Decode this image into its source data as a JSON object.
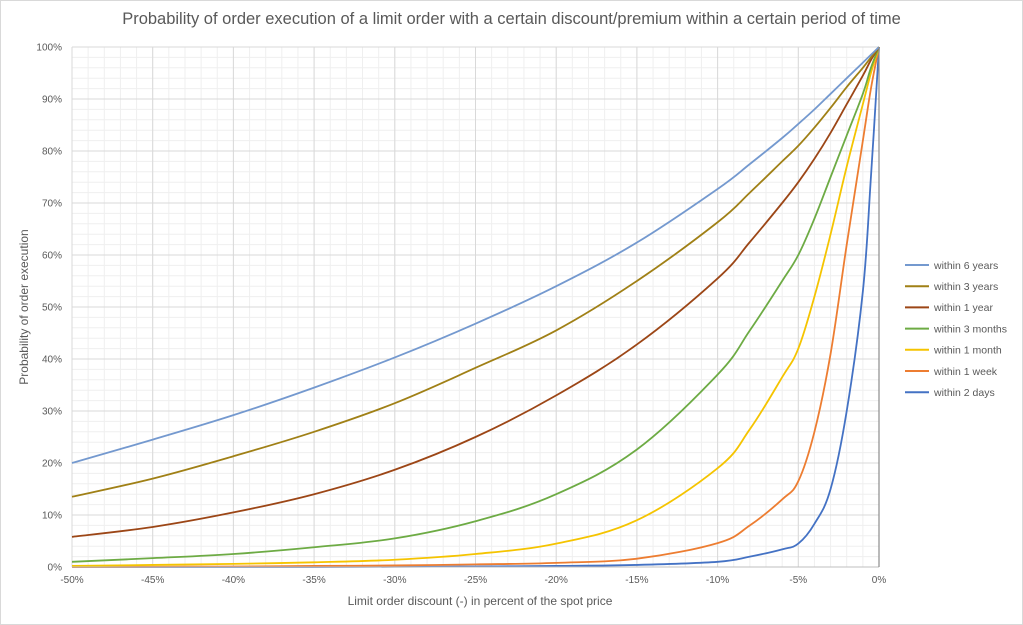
{
  "chart_data": {
    "type": "line",
    "title": "Probability of order execution of a limit order with a certain discount/premium within a certain period of time",
    "xlabel": "Limit order discount (-) in percent of the spot price",
    "ylabel": "Probability of order execution",
    "xlim": [
      -50,
      0
    ],
    "ylim": [
      0,
      100
    ],
    "x_ticks": [
      -50,
      -45,
      -40,
      -35,
      -30,
      -25,
      -20,
      -15,
      -10,
      -5,
      0
    ],
    "x_tick_labels": [
      "-50%",
      "-45%",
      "-40%",
      "-35%",
      "-30%",
      "-25%",
      "-20%",
      "-15%",
      "-10%",
      "-5%",
      "0%"
    ],
    "y_ticks": [
      0,
      10,
      20,
      30,
      40,
      50,
      60,
      70,
      80,
      90,
      100
    ],
    "y_tick_labels": [
      "0%",
      "10%",
      "20%",
      "30%",
      "40%",
      "50%",
      "60%",
      "70%",
      "80%",
      "90%",
      "100%"
    ],
    "grid": true,
    "legend_position": "right",
    "x": [
      -50,
      -45,
      -40,
      -35,
      -30,
      -25,
      -20,
      -15,
      -10,
      -8,
      -6,
      -5,
      -4,
      -3,
      -2,
      -1,
      -0.5,
      0
    ],
    "series": [
      {
        "name": "within 6 years",
        "color": "#7499cf",
        "values": [
          20,
          24.5,
          29.2,
          34.5,
          40.3,
          46.8,
          54,
          62.4,
          72.7,
          77.5,
          82.5,
          85.2,
          88,
          91,
          94,
          97,
          98.5,
          100
        ]
      },
      {
        "name": "within 3 years",
        "color": "#a08016",
        "values": [
          13.5,
          17,
          21.3,
          26,
          31.5,
          38.3,
          45.5,
          55,
          66.3,
          72,
          78,
          81,
          84.5,
          88.3,
          92.3,
          96,
          98,
          100
        ]
      },
      {
        "name": "within 1 year",
        "color": "#9c4616",
        "values": [
          5.8,
          7.7,
          10.5,
          14,
          18.7,
          25,
          33,
          42.8,
          55.5,
          62.5,
          70,
          74,
          78.5,
          83.5,
          89,
          94.5,
          97.5,
          100
        ]
      },
      {
        "name": "within 3 months",
        "color": "#6dab44",
        "values": [
          1.0,
          1.7,
          2.5,
          3.8,
          5.5,
          8.8,
          14,
          22.6,
          37,
          45.5,
          55,
          60,
          67,
          75,
          83,
          91,
          96,
          100
        ]
      },
      {
        "name": "within 1 month",
        "color": "#f5c400",
        "values": [
          0.2,
          0.4,
          0.6,
          0.9,
          1.4,
          2.5,
          4.5,
          9,
          19,
          26.5,
          36.5,
          42,
          52,
          64,
          77,
          89,
          95,
          100
        ]
      },
      {
        "name": "within 1 week",
        "color": "#ed7d31",
        "values": [
          0.0,
          0.05,
          0.1,
          0.2,
          0.3,
          0.5,
          0.8,
          1.6,
          4.6,
          8,
          13,
          16.5,
          26,
          41,
          62,
          82,
          92,
          100
        ]
      },
      {
        "name": "within 2 days",
        "color": "#4472c4",
        "values": [
          0.0,
          0.0,
          0.0,
          0.0,
          0.05,
          0.1,
          0.2,
          0.4,
          1,
          2,
          3.4,
          4.5,
          8.3,
          15,
          30,
          53,
          75,
          100
        ]
      }
    ]
  }
}
